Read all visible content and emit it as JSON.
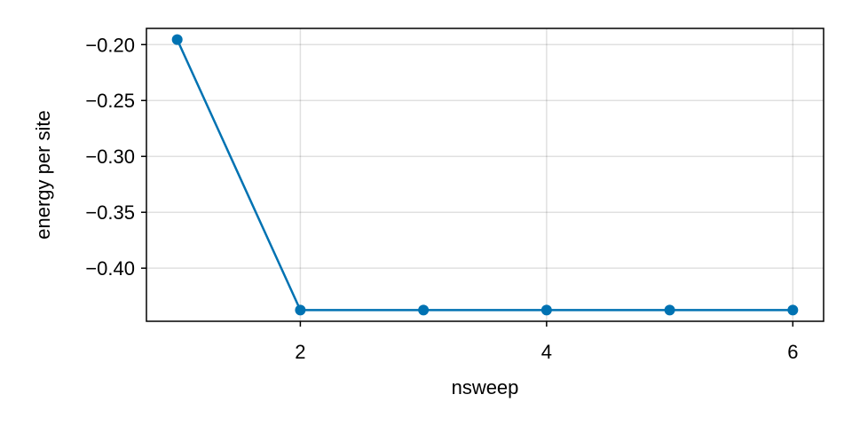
{
  "chart_data": {
    "type": "line",
    "xlabel": "nsweep",
    "ylabel": "energy per site",
    "x": [
      1,
      2,
      3,
      4,
      5,
      6
    ],
    "series": [
      {
        "values": [
          -0.1955,
          -0.4375,
          -0.4375,
          -0.4375,
          -0.4375,
          -0.4375
        ],
        "color": "#0072b2"
      }
    ],
    "xlim": [
      0.75,
      6.25
    ],
    "ylim": [
      -0.4475,
      -0.1855
    ],
    "xticks": [
      2,
      4,
      6
    ],
    "xtick_labels": [
      "2",
      "4",
      "6"
    ],
    "yticks": [
      -0.2,
      -0.25,
      -0.3,
      -0.35,
      -0.4
    ],
    "ytick_labels": [
      "−0.20",
      "−0.25",
      "−0.30",
      "−0.35",
      "−0.40"
    ],
    "grid": true,
    "legend": "none"
  }
}
